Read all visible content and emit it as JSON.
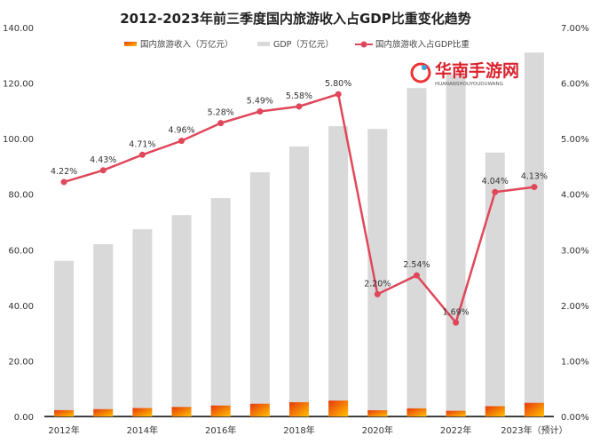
{
  "chart_data": {
    "type": "bar+line",
    "title": "2012-2023年前三季度国内旅游收入占GDP比重变化趋势",
    "categories": [
      "2012年",
      "",
      "2014年",
      "",
      "2016年",
      "",
      "2018年",
      "",
      "2020年",
      "",
      "2022年",
      "",
      "2023年（预计）"
    ],
    "series": [
      {
        "name": "国内旅游收入（万亿元）",
        "type": "bar",
        "axis": "left",
        "values": [
          2.27,
          2.63,
          3.03,
          3.42,
          3.94,
          4.57,
          5.13,
          5.73,
          2.23,
          2.92,
          2.04,
          3.7,
          4.9
        ]
      },
      {
        "name": "GDP（万亿元）",
        "type": "bar",
        "axis": "left",
        "values": [
          56,
          62,
          67.4,
          72.5,
          78.6,
          87.9,
          97.2,
          104.5,
          103.5,
          118.2,
          123,
          95,
          131
        ]
      },
      {
        "name": "国内旅游收入占GDP比重",
        "type": "line",
        "axis": "right",
        "values": [
          4.22,
          4.43,
          4.71,
          4.96,
          5.28,
          5.49,
          5.58,
          5.8,
          2.2,
          2.54,
          1.69,
          4.04,
          4.13
        ],
        "labels": [
          "4.22%",
          "4.43%",
          "4.71%",
          "4.96%",
          "5.28%",
          "5.49%",
          "5.58%",
          "5.80%",
          "2.20%",
          "2.54%",
          "1.69%",
          "4.04%",
          "4.13%"
        ]
      }
    ],
    "ylim_left": [
      0,
      140
    ],
    "ylim_right": [
      0,
      7
    ],
    "left_ticks": [
      "0.00",
      "20.00",
      "40.00",
      "60.00",
      "80.00",
      "100.00",
      "120.00",
      "140.00"
    ],
    "right_ticks": [
      "0.00%",
      "1.00%",
      "2.00%",
      "3.00%",
      "4.00%",
      "5.00%",
      "6.00%",
      "7.00%"
    ],
    "grid": false,
    "legend": "top",
    "colors": {
      "revenue_start": "#e8380d",
      "revenue_end": "#ffc000",
      "gdp": "#d9d9d9",
      "line": "#e0475a"
    }
  },
  "watermark": {
    "text": "华南手游网",
    "sub": "HUANANSHOUYOUDUWANG"
  }
}
